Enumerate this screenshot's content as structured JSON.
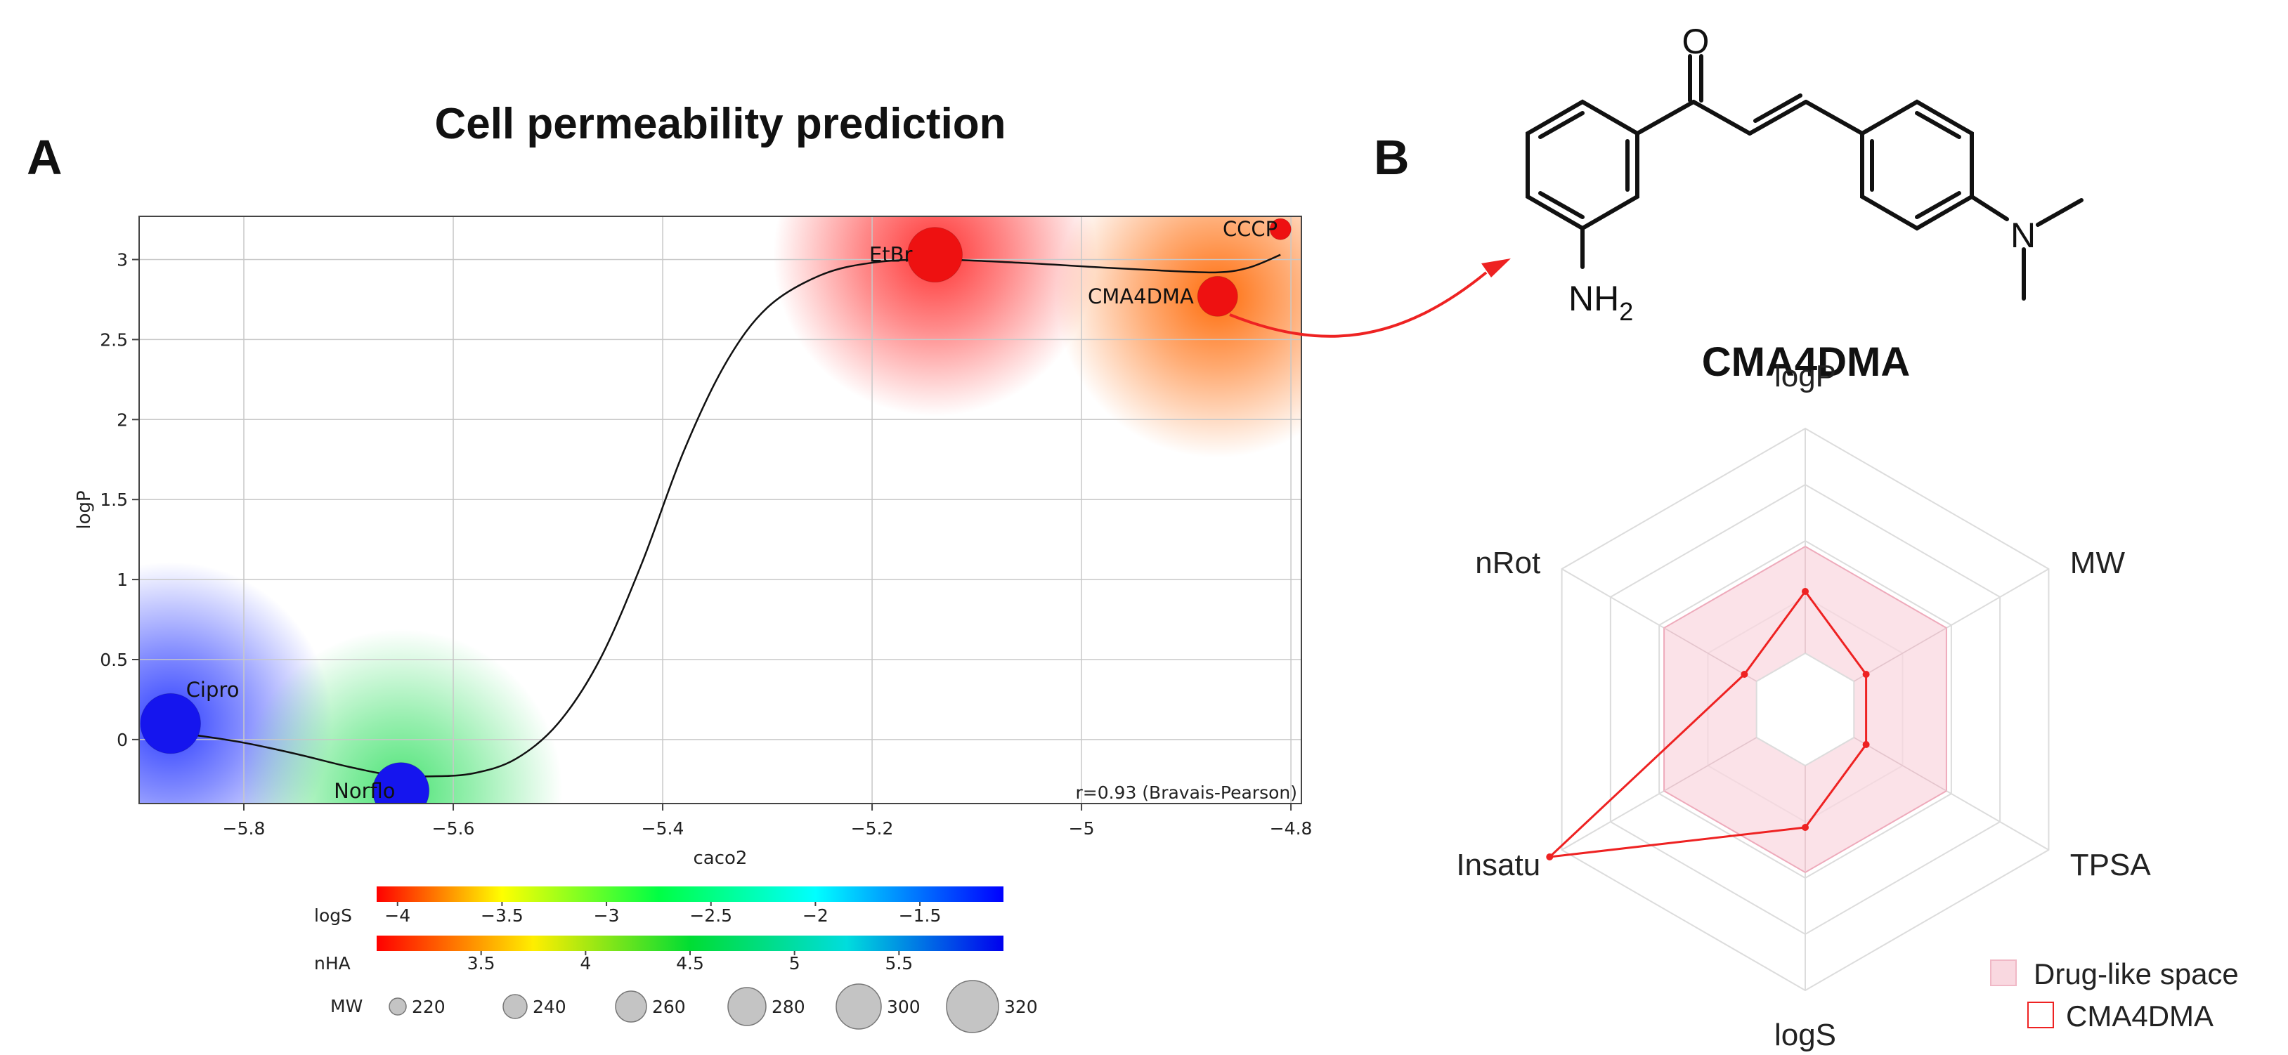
{
  "panels": {
    "a_label": "A",
    "b_label": "B"
  },
  "chart_data": [
    {
      "type": "scatter",
      "title": "Cell permeability prediction",
      "xlabel": "caco2",
      "ylabel": "logP",
      "xlim": [
        -5.9,
        -4.79
      ],
      "ylim": [
        -0.4,
        3.27
      ],
      "xticks": [
        -5.8,
        -5.6,
        -5.4,
        -5.2,
        -5.0,
        -4.8
      ],
      "xtick_labels": [
        "−5.8",
        "−5.6",
        "−5.4",
        "−5.2",
        "−5",
        "−4.8"
      ],
      "yticks": [
        0,
        0.5,
        1,
        1.5,
        2,
        2.5,
        3
      ],
      "ytick_labels": [
        "0",
        "0.5",
        "1",
        "1.5",
        "2",
        "2.5",
        "3"
      ],
      "grid": true,
      "annotation": "r=0.93 (Bravais-Pearson)",
      "points": [
        {
          "name": "Cipro",
          "caco2": -5.87,
          "logP": 0.1,
          "logS": -1.3,
          "nHA": 5.8,
          "MW": 331,
          "halo_color": "#2233ff",
          "halo": 1.0
        },
        {
          "name": "Norflo",
          "caco2": -5.65,
          "logP": -0.32,
          "logS": -1.3,
          "nHA": 5.8,
          "MW": 319,
          "halo_color": "#22dd55",
          "halo": 0.85
        },
        {
          "name": "EtBr",
          "caco2": -5.14,
          "logP": 3.03,
          "logS": -4.1,
          "nHA": 3.1,
          "MW": 314,
          "halo_color": "#ff1111",
          "halo": 0.9
        },
        {
          "name": "CMA4DMA",
          "caco2": -4.87,
          "logP": 2.77,
          "logS": -4.1,
          "nHA": 3.1,
          "MW": 266,
          "halo_color": "#ff6600",
          "halo": 1.0
        },
        {
          "name": "CCCP",
          "caco2": -4.81,
          "logP": 3.19,
          "logS": -3.3,
          "nHA": 3.5,
          "MW": 205,
          "halo_color": "#ff8800",
          "halo": 0
        }
      ],
      "trend": [
        [
          -5.88,
          0.05
        ],
        [
          -5.85,
          0.03
        ],
        [
          -5.8,
          -0.02
        ],
        [
          -5.75,
          -0.09
        ],
        [
          -5.7,
          -0.17
        ],
        [
          -5.66,
          -0.22
        ],
        [
          -5.62,
          -0.23
        ],
        [
          -5.58,
          -0.21
        ],
        [
          -5.54,
          -0.12
        ],
        [
          -5.5,
          0.1
        ],
        [
          -5.46,
          0.5
        ],
        [
          -5.42,
          1.1
        ],
        [
          -5.38,
          1.8
        ],
        [
          -5.34,
          2.35
        ],
        [
          -5.3,
          2.7
        ],
        [
          -5.25,
          2.9
        ],
        [
          -5.2,
          2.98
        ],
        [
          -5.14,
          3.0
        ],
        [
          -5.06,
          2.98
        ],
        [
          -4.98,
          2.95
        ],
        [
          -4.92,
          2.93
        ],
        [
          -4.87,
          2.92
        ],
        [
          -4.84,
          2.95
        ],
        [
          -4.81,
          3.03
        ]
      ],
      "legend": {
        "logS": {
          "label": "logS",
          "ticks": [
            -4,
            -3.5,
            -3,
            -2.5,
            -2,
            -1.5
          ],
          "tick_labels": [
            "−4",
            "−3.5",
            "−3",
            "−2.5",
            "−2",
            "−1.5"
          ],
          "range": [
            -4.1,
            -1.1
          ]
        },
        "nHA": {
          "label": "nHA",
          "ticks": [
            3.5,
            4,
            4.5,
            5,
            5.5
          ],
          "tick_labels": [
            "3.5",
            "4",
            "4.5",
            "5",
            "5.5"
          ],
          "range": [
            3.0,
            6.0
          ]
        },
        "MW": {
          "label": "MW",
          "ticks": [
            220,
            240,
            260,
            280,
            300,
            320
          ],
          "tick_labels": [
            "220",
            "240",
            "260",
            "280",
            "300",
            "320"
          ]
        }
      }
    },
    {
      "type": "radar",
      "axes": [
        "logP",
        "MW",
        "TPSA",
        "logS",
        "Insatu",
        "nRot"
      ],
      "drug_like_space": [
        0.58,
        0.58,
        0.58,
        0.58,
        0.58,
        0.58
      ],
      "cma4dma": [
        0.42,
        0.25,
        0.25,
        0.42,
        1.05,
        0.25
      ],
      "legend": [
        "Drug-like space",
        "CMA4DMA"
      ],
      "colors": {
        "drug_like_fill": "#f9d8e0",
        "drug_like_stroke": "#eeaabb",
        "cma4dma": "#ee2222"
      }
    }
  ],
  "molecule": {
    "name": "CMA4DMA",
    "atoms": {
      "oxygen": "O",
      "nitrogen": "N",
      "amine": "NH",
      "amine_sub": "2"
    }
  },
  "colors": {
    "arrow": "#ee2222",
    "point_blue": "#1515ee",
    "point_red": "#ee1111",
    "point_green": "#88dd22"
  }
}
